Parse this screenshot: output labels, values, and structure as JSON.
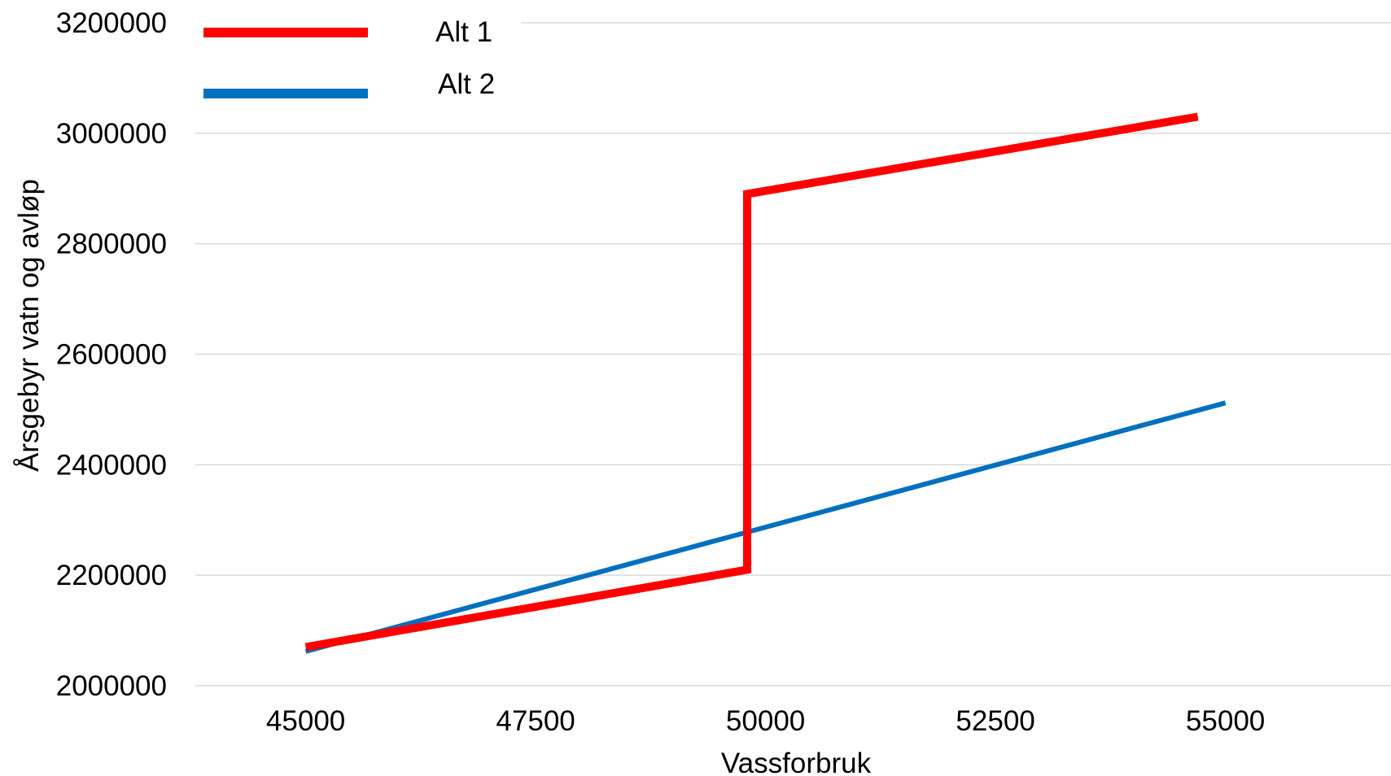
{
  "chart_data": {
    "type": "line",
    "xlabel": "Vassforbruk",
    "ylabel": "Årsgebyr vatn og avløp",
    "xlim": [
      43800,
      56800
    ],
    "ylim": [
      2000000,
      3200000
    ],
    "x_ticks": [
      45000,
      47500,
      50000,
      52500,
      55000
    ],
    "y_ticks": [
      2000000,
      2200000,
      2400000,
      2600000,
      2800000,
      3000000,
      3200000
    ],
    "x_tick_labels": [
      "45000",
      "47500",
      "50000",
      "52500",
      "55000"
    ],
    "y_tick_labels": [
      "2000000",
      "2200000",
      "2400000",
      "2600000",
      "2800000",
      "3000000",
      "3200000"
    ],
    "grid": true,
    "legend_position": "top-left",
    "series": [
      {
        "name": "Alt 1",
        "color": "#ff0000",
        "points": [
          [
            45000,
            2070000
          ],
          [
            49800,
            2210000
          ],
          [
            49800,
            2890000
          ],
          [
            54700,
            3030000
          ]
        ]
      },
      {
        "name": "Alt 2",
        "color": "#0070c0",
        "points": [
          [
            45000,
            2062000
          ],
          [
            55000,
            2512000
          ]
        ]
      }
    ]
  }
}
